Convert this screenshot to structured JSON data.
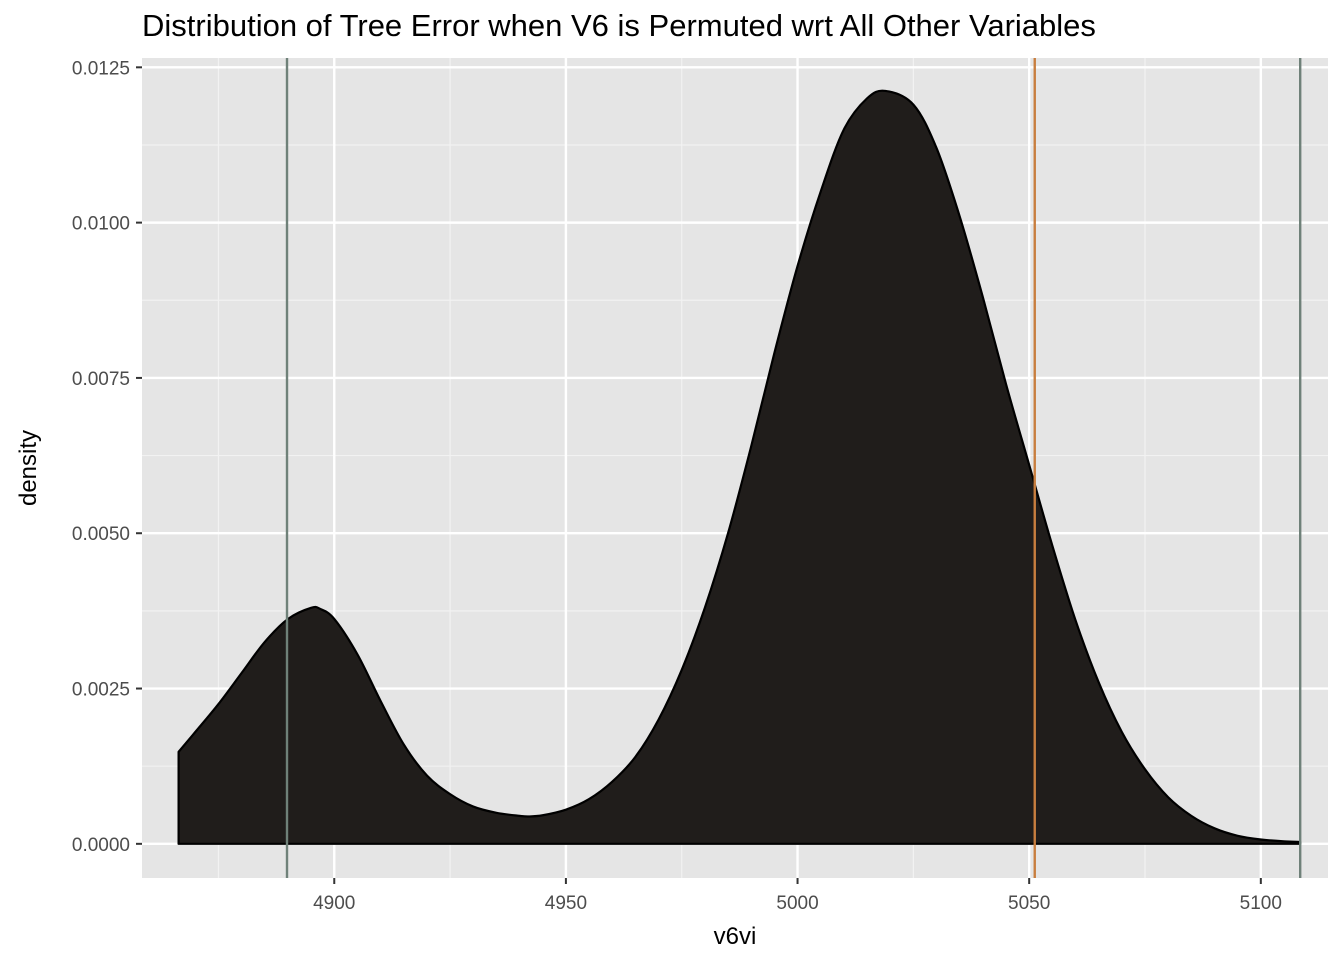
{
  "chart_data": {
    "type": "area",
    "title": "Distribution of Tree Error when V6 is Permuted wrt All Other Variables",
    "xlabel": "v6vi",
    "ylabel": "density",
    "xlim": [
      4858.5,
      5114.5
    ],
    "ylim": [
      -0.00055,
      0.01265
    ],
    "x_ticks": [
      4900,
      4950,
      5000,
      5050,
      5100
    ],
    "x_tick_labels": [
      "4900",
      "4950",
      "5000",
      "5050",
      "5100"
    ],
    "y_ticks": [
      0,
      0.0025,
      0.005,
      0.0075,
      0.01,
      0.0125
    ],
    "y_tick_labels": [
      "0.0000",
      "0.0025",
      "0.0050",
      "0.0075",
      "0.0100",
      "0.0125"
    ],
    "grid": true,
    "density": {
      "x": [
        4866.4,
        4870,
        4875,
        4880,
        4885,
        4890,
        4895,
        4897,
        4900,
        4905,
        4910,
        4915,
        4920,
        4925,
        4930,
        4935,
        4940,
        4942,
        4945,
        4950,
        4955,
        4960,
        4965,
        4970,
        4975,
        4980,
        4985,
        4990,
        4995,
        5000,
        5005,
        5010,
        5015,
        5019,
        5025,
        5030,
        5035,
        5040,
        5045,
        5050,
        5055,
        5060,
        5065,
        5070,
        5075,
        5080,
        5085,
        5090,
        5095,
        5100,
        5105,
        5108.5
      ],
      "y": [
        0.00148,
        0.0018,
        0.00225,
        0.00275,
        0.00325,
        0.00362,
        0.0038,
        0.00378,
        0.00362,
        0.00305,
        0.0023,
        0.0016,
        0.0011,
        0.0008,
        0.0006,
        0.0005,
        0.00045,
        0.00044,
        0.00046,
        0.00055,
        0.00072,
        0.001,
        0.0014,
        0.002,
        0.0028,
        0.0038,
        0.005,
        0.0064,
        0.0079,
        0.0093,
        0.0105,
        0.0115,
        0.012,
        0.01212,
        0.0119,
        0.0112,
        0.0101,
        0.0088,
        0.0074,
        0.0061,
        0.0048,
        0.0036,
        0.0026,
        0.0018,
        0.0012,
        0.00075,
        0.00045,
        0.00025,
        0.00013,
        7e-05,
        4e-05,
        3e-05
      ],
      "fill": "#201d1b",
      "outline": "#000000"
    },
    "vlines": [
      {
        "x": 4889.8,
        "color": "#6f8179"
      },
      {
        "x": 5051.2,
        "color": "#c87e3f"
      },
      {
        "x": 5108.5,
        "color": "#6f8179"
      }
    ],
    "colors": {
      "panel_background": "#e5e5e5",
      "grid_major": "#ffffff",
      "grid_minor": "#f2f2f2"
    }
  }
}
